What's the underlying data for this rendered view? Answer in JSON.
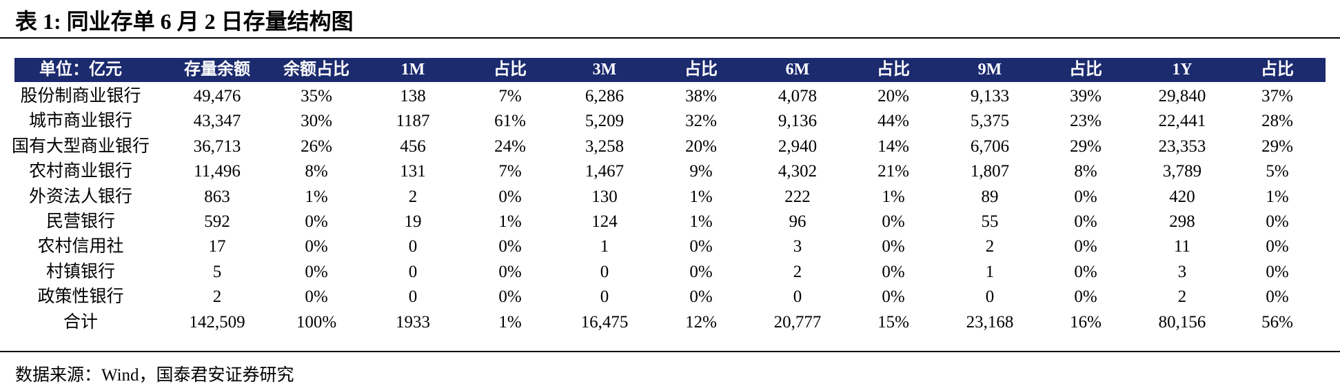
{
  "header": {
    "title": "表 1:  同业存单 6 月 2 日存量结构图"
  },
  "table": {
    "columns": [
      "单位：亿元",
      "存量余额",
      "余额占比",
      "1M",
      "占比",
      "3M",
      "占比",
      "6M",
      "占比",
      "9M",
      "占比",
      "1Y",
      "占比"
    ],
    "rows": [
      [
        "股份制商业银行",
        "49,476",
        "35%",
        "138",
        "7%",
        "6,286",
        "38%",
        "4,078",
        "20%",
        "9,133",
        "39%",
        "29,840",
        "37%"
      ],
      [
        "城市商业银行",
        "43,347",
        "30%",
        "1187",
        "61%",
        "5,209",
        "32%",
        "9,136",
        "44%",
        "5,375",
        "23%",
        "22,441",
        "28%"
      ],
      [
        "国有大型商业银行",
        "36,713",
        "26%",
        "456",
        "24%",
        "3,258",
        "20%",
        "2,940",
        "14%",
        "6,706",
        "29%",
        "23,353",
        "29%"
      ],
      [
        "农村商业银行",
        "11,496",
        "8%",
        "131",
        "7%",
        "1,467",
        "9%",
        "4,302",
        "21%",
        "1,807",
        "8%",
        "3,789",
        "5%"
      ],
      [
        "外资法人银行",
        "863",
        "1%",
        "2",
        "0%",
        "130",
        "1%",
        "222",
        "1%",
        "89",
        "0%",
        "420",
        "1%"
      ],
      [
        "民营银行",
        "592",
        "0%",
        "19",
        "1%",
        "124",
        "1%",
        "96",
        "0%",
        "55",
        "0%",
        "298",
        "0%"
      ],
      [
        "农村信用社",
        "17",
        "0%",
        "0",
        "0%",
        "1",
        "0%",
        "3",
        "0%",
        "2",
        "0%",
        "11",
        "0%"
      ],
      [
        "村镇银行",
        "5",
        "0%",
        "0",
        "0%",
        "0",
        "0%",
        "2",
        "0%",
        "1",
        "0%",
        "3",
        "0%"
      ],
      [
        "政策性银行",
        "2",
        "0%",
        "0",
        "0%",
        "0",
        "0%",
        "0",
        "0%",
        "0",
        "0%",
        "2",
        "0%"
      ],
      [
        "合计",
        "142,509",
        "100%",
        "1933",
        "1%",
        "16,475",
        "12%",
        "20,777",
        "15%",
        "23,168",
        "16%",
        "80,156",
        "56%"
      ]
    ]
  },
  "footer": {
    "source": "数据来源：Wind，国泰君安证券研究"
  }
}
